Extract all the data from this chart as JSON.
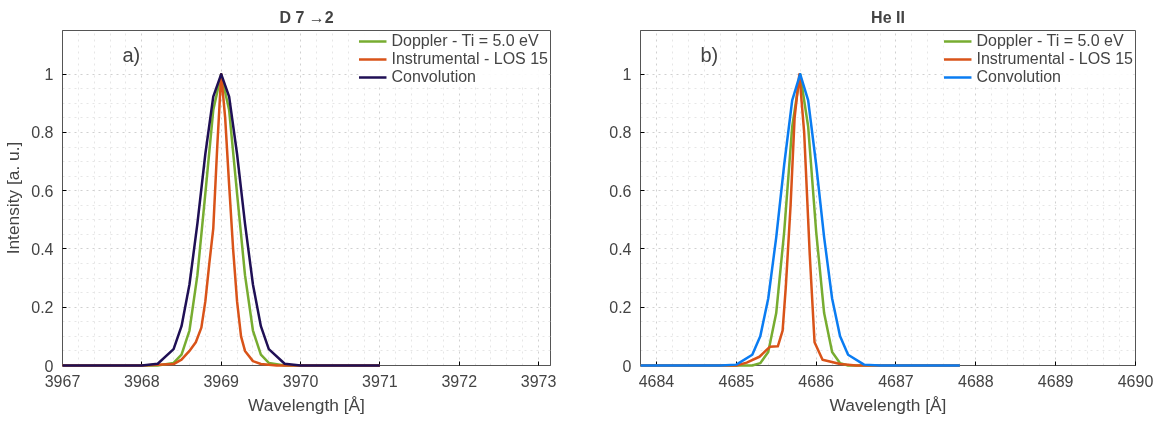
{
  "chart_data": [
    {
      "type": "line",
      "title": "D 7 →2",
      "xlabel": "Wavelength [Å]",
      "ylabel": "Intensity [a. u.]",
      "annotations": [
        "a)"
      ],
      "xlim": [
        3967,
        3973.15
      ],
      "xticks": [
        3967,
        3968,
        3969,
        3970,
        3971,
        3972,
        3973
      ],
      "ylim": [
        0,
        1.15
      ],
      "yticks": [
        0,
        0.2,
        0.4,
        0.6,
        0.8,
        1
      ],
      "grid": true,
      "legend": "top right",
      "line_style": "solid",
      "marker": "none",
      "series": [
        {
          "name": "Doppler - Ti = 5.0 eV",
          "color": "#77ac30",
          "x": [
            3967,
            3968,
            3968.2,
            3968.4,
            3968.5,
            3968.6,
            3968.7,
            3968.8,
            3968.9,
            3969,
            3969.1,
            3969.2,
            3969.3,
            3969.4,
            3969.5,
            3969.6,
            3969.8,
            3970,
            3971
          ],
          "values": [
            0,
            0,
            0,
            0.009,
            0.037,
            0.12,
            0.31,
            0.59,
            0.877,
            1,
            0.877,
            0.59,
            0.31,
            0.12,
            0.037,
            0.009,
            0,
            0,
            0
          ]
        },
        {
          "name": "Instrumental - LOS 15",
          "color": "#d95319",
          "x": [
            3967,
            3968,
            3968.4,
            3968.5,
            3968.6,
            3968.68,
            3968.75,
            3968.8,
            3968.85,
            3968.9,
            3968.95,
            3969,
            3969.05,
            3969.1,
            3969.15,
            3969.2,
            3969.25,
            3969.3,
            3969.4,
            3969.5,
            3969.7,
            3971
          ],
          "values": [
            0,
            0,
            0.005,
            0.02,
            0.05,
            0.08,
            0.13,
            0.22,
            0.35,
            0.47,
            0.75,
            1,
            0.85,
            0.62,
            0.4,
            0.22,
            0.1,
            0.05,
            0.015,
            0.005,
            0,
            0
          ]
        },
        {
          "name": "Convolution",
          "color": "#1f0f55",
          "x": [
            3967,
            3968,
            3968.2,
            3968.4,
            3968.5,
            3968.6,
            3968.7,
            3968.8,
            3968.9,
            3969,
            3969.1,
            3969.2,
            3969.3,
            3969.4,
            3969.5,
            3969.6,
            3969.8,
            3970,
            3971
          ],
          "values": [
            0,
            0,
            0.006,
            0.056,
            0.135,
            0.278,
            0.487,
            0.726,
            0.923,
            1,
            0.923,
            0.726,
            0.487,
            0.278,
            0.135,
            0.056,
            0.006,
            0,
            0
          ]
        }
      ]
    },
    {
      "type": "line",
      "title": "He II",
      "xlabel": "Wavelength [Å]",
      "annotations": [
        "b)"
      ],
      "xlim": [
        4683.8,
        4690
      ],
      "xticks": [
        4684,
        4685,
        4686,
        4687,
        4688,
        4689,
        4690
      ],
      "ylim": [
        0,
        1.15
      ],
      "yticks": [
        0,
        0.2,
        0.4,
        0.6,
        0.8,
        1
      ],
      "grid": true,
      "legend": "top right",
      "line_style": "solid",
      "marker": "none",
      "series": [
        {
          "name": "Doppler - Ti = 5.0 eV",
          "color": "#77ac30",
          "x": [
            4683.8,
            4685,
            4685.2,
            4685.3,
            4685.4,
            4685.5,
            4685.6,
            4685.7,
            4685.8,
            4685.9,
            4686,
            4686.1,
            4686.2,
            4686.3,
            4686.4,
            4686.6,
            4687.8
          ],
          "values": [
            0,
            0,
            0,
            0.008,
            0.046,
            0.18,
            0.46,
            0.82,
            1,
            0.82,
            0.46,
            0.18,
            0.046,
            0.008,
            0,
            0,
            0
          ]
        },
        {
          "name": "Instrumental - LOS 15",
          "color": "#d95319",
          "x": [
            4683.8,
            4685,
            4685.13,
            4685.29,
            4685.42,
            4685.52,
            4685.58,
            4685.62,
            4685.68,
            4685.73,
            4685.79,
            4685.85,
            4685.92,
            4685.98,
            4686.08,
            4686.3,
            4686.5,
            4687.8
          ],
          "values": [
            0,
            0,
            0.01,
            0.03,
            0.064,
            0.066,
            0.12,
            0.27,
            0.55,
            0.85,
            1,
            0.8,
            0.38,
            0.08,
            0.02,
            0.005,
            0,
            0
          ]
        },
        {
          "name": "Convolution",
          "color": "#0a7cf2",
          "x": [
            4683.8,
            4684.8,
            4685,
            4685.2,
            4685.3,
            4685.4,
            4685.5,
            4685.6,
            4685.7,
            4685.8,
            4685.9,
            4686,
            4686.1,
            4686.2,
            4686.3,
            4686.4,
            4686.6,
            4686.8,
            4687.8
          ],
          "values": [
            0,
            0,
            0.003,
            0.037,
            0.1,
            0.23,
            0.44,
            0.69,
            0.91,
            1,
            0.91,
            0.69,
            0.44,
            0.23,
            0.1,
            0.037,
            0.003,
            0,
            0
          ]
        }
      ]
    }
  ]
}
